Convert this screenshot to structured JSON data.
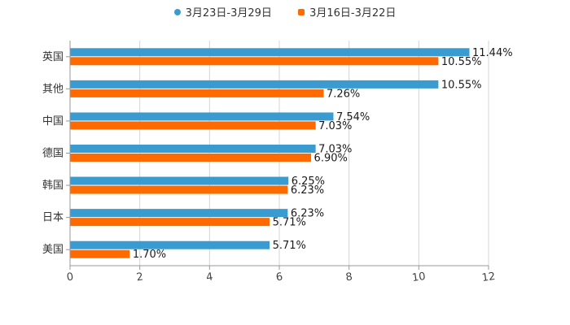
{
  "chart_data": {
    "type": "bar",
    "orientation": "horizontal",
    "title": "",
    "xlabel": "",
    "ylabel": "",
    "categories": [
      "英国",
      "其他",
      "中国",
      "德国",
      "韩国",
      "日本",
      "美国"
    ],
    "series": [
      {
        "name": "3月23日-3月29日",
        "color": "#3a9bd0",
        "marker": "circle",
        "values": [
          11.44,
          10.55,
          7.54,
          7.03,
          6.25,
          6.23,
          5.71
        ],
        "labels": [
          "11.44%",
          "10.55%",
          "7.54%",
          "7.03%",
          "6.25%",
          "6.23%",
          "5.71%"
        ]
      },
      {
        "name": "3月16日-3月22日",
        "color": "#ff6a00",
        "marker": "square",
        "values": [
          10.55,
          7.26,
          7.03,
          6.9,
          6.23,
          5.71,
          1.7
        ],
        "labels": [
          "10.55%",
          "7.26%",
          "7.03%",
          "6.90%",
          "6.23%",
          "5.71%",
          "1.70%"
        ]
      }
    ],
    "xlim": [
      0,
      12
    ],
    "xticks": [
      "0",
      "2",
      "4",
      "6",
      "8",
      "10",
      "12"
    ],
    "grid": true,
    "legend": "top-center"
  }
}
